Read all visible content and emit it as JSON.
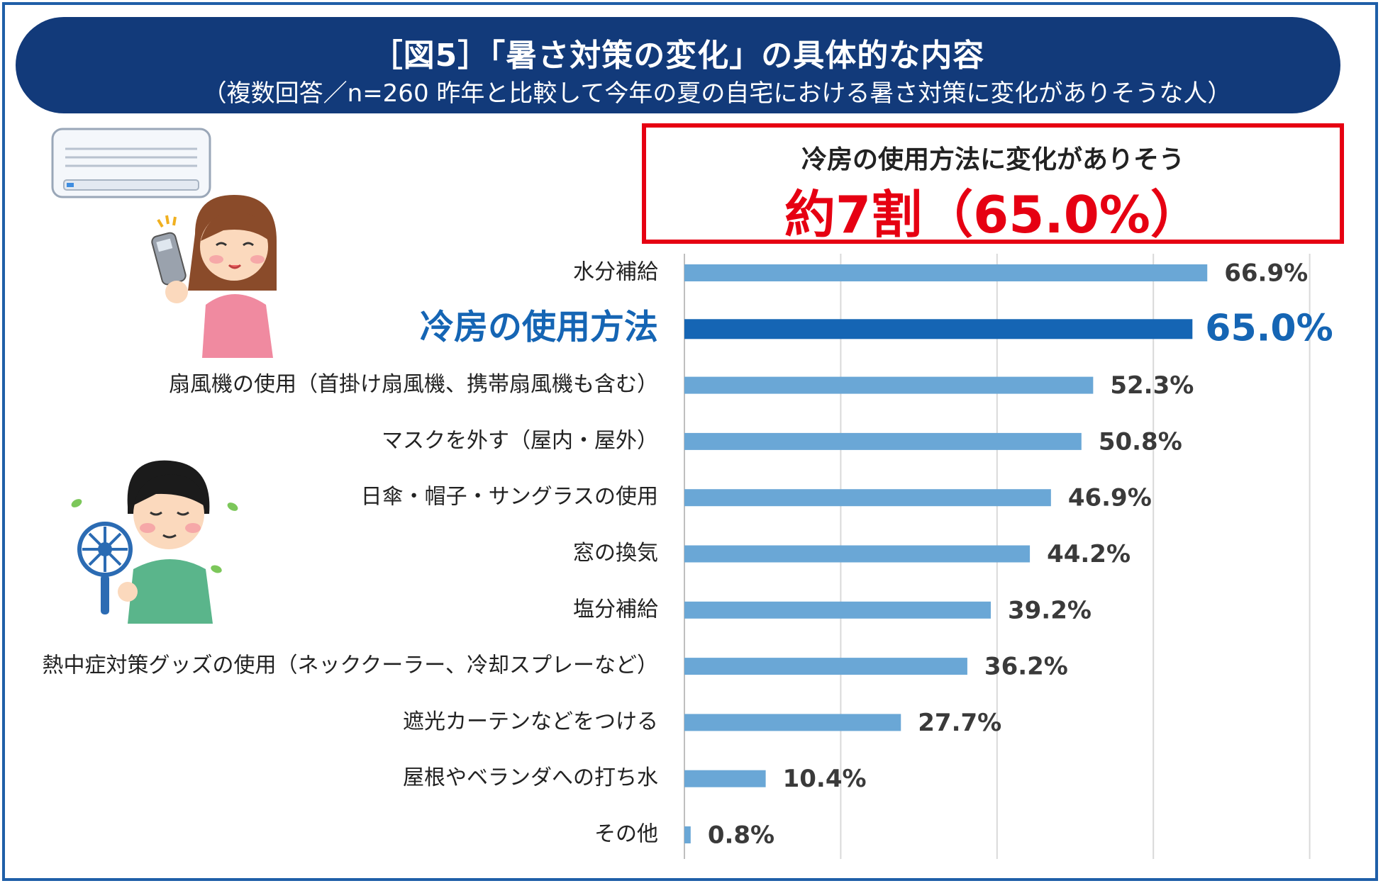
{
  "title": "［図5］「暑さ対策の変化」の具体的な内容",
  "subtitle": "（複数回答／n=260 昨年と比較して今年の夏の自宅における暑さ対策に変化がありそうな人）",
  "callout": {
    "subtitle": "冷房の使用方法に変化がありそう",
    "headline": "約7割（65.0%）"
  },
  "colors": {
    "bar": "#6aa7d6",
    "bar_highlight": "#1565b4",
    "highlight_text": "#1565b4",
    "callout_red": "#e60012",
    "title_bg": "#123a7a"
  },
  "chart_data": {
    "type": "bar",
    "orientation": "horizontal",
    "categories": [
      "水分補給",
      "冷房の使用方法",
      "扇風機の使用（首掛け扇風機、携帯扇風機も含む）",
      "マスクを外す（屋内・屋外）",
      "日傘・帽子・サングラスの使用",
      "窓の換気",
      "塩分補給",
      "熱中症対策グッズの使用（ネッククーラー、冷却スプレーなど）",
      "遮光カーテンなどをつける",
      "屋根やベランダへの打ち水",
      "その他"
    ],
    "values": [
      66.9,
      65.0,
      52.3,
      50.8,
      46.9,
      44.2,
      39.2,
      36.2,
      27.7,
      10.4,
      0.8
    ],
    "value_labels": [
      "66.9%",
      "65.0%",
      "52.3%",
      "50.8%",
      "46.9%",
      "44.2%",
      "39.2%",
      "36.2%",
      "27.7%",
      "10.4%",
      "0.8%"
    ],
    "highlight_index": 1,
    "xlim": [
      0,
      80
    ],
    "grid": true,
    "title": "",
    "xlabel": "",
    "ylabel": ""
  }
}
